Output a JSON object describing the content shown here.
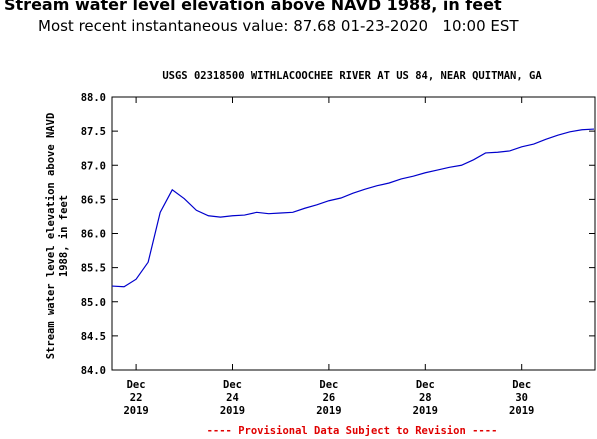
{
  "header": {
    "title": "Stream water level elevation above NAVD 1988, in feet",
    "subtitle": "Most recent instantaneous value: 87.68 01-23-2020   10:00 EST"
  },
  "chart_data": {
    "type": "line",
    "title": "USGS 02318500 WITHLACOOCHEE RIVER AT US 84, NEAR QUITMAN, GA",
    "ylabel": [
      "Stream water level elevation above NAVD",
      "1988, in feet"
    ],
    "footer": "---- Provisional Data Subject to Revision ----",
    "color": "#0000cc",
    "x": [
      "2019-12-21T12:00",
      "2019-12-21T18:00",
      "2019-12-22T00:00",
      "2019-12-22T06:00",
      "2019-12-22T12:00",
      "2019-12-22T18:00",
      "2019-12-23T00:00",
      "2019-12-23T06:00",
      "2019-12-23T12:00",
      "2019-12-23T18:00",
      "2019-12-24T00:00",
      "2019-12-24T06:00",
      "2019-12-24T12:00",
      "2019-12-24T18:00",
      "2019-12-25T00:00",
      "2019-12-25T06:00",
      "2019-12-25T12:00",
      "2019-12-25T18:00",
      "2019-12-26T00:00",
      "2019-12-26T06:00",
      "2019-12-26T12:00",
      "2019-12-26T18:00",
      "2019-12-27T00:00",
      "2019-12-27T06:00",
      "2019-12-27T12:00",
      "2019-12-27T18:00",
      "2019-12-28T00:00",
      "2019-12-28T06:00",
      "2019-12-28T12:00",
      "2019-12-28T18:00",
      "2019-12-29T00:00",
      "2019-12-29T06:00",
      "2019-12-29T12:00",
      "2019-12-29T18:00",
      "2019-12-30T00:00",
      "2019-12-30T06:00",
      "2019-12-30T12:00",
      "2019-12-30T18:00",
      "2019-12-31T00:00",
      "2019-12-31T06:00",
      "2019-12-31T12:00"
    ],
    "values": [
      85.23,
      85.22,
      85.33,
      85.58,
      86.31,
      86.64,
      86.51,
      86.34,
      86.26,
      86.24,
      86.26,
      86.27,
      86.31,
      86.29,
      86.3,
      86.31,
      86.37,
      86.42,
      86.48,
      86.52,
      86.59,
      86.65,
      86.7,
      86.74,
      86.8,
      86.84,
      86.89,
      86.93,
      86.97,
      87.0,
      87.08,
      87.18,
      87.19,
      87.21,
      87.27,
      87.31,
      87.38,
      87.44,
      87.49,
      87.52,
      87.53
    ],
    "xlim": [
      "2019-12-21T12:00",
      "2019-12-31T12:30"
    ],
    "xticks": [
      {
        "value": "2019-12-22T00:00",
        "label": [
          "Dec",
          "22",
          "2019"
        ]
      },
      {
        "value": "2019-12-24T00:00",
        "label": [
          "Dec",
          "24",
          "2019"
        ]
      },
      {
        "value": "2019-12-26T00:00",
        "label": [
          "Dec",
          "26",
          "2019"
        ]
      },
      {
        "value": "2019-12-28T00:00",
        "label": [
          "Dec",
          "28",
          "2019"
        ]
      },
      {
        "value": "2019-12-30T00:00",
        "label": [
          "Dec",
          "30",
          "2019"
        ]
      }
    ],
    "ylim": [
      84,
      88
    ],
    "yticks": [
      {
        "value": 84,
        "label": "84.0"
      },
      {
        "value": 84.5,
        "label": "84.5"
      },
      {
        "value": 85,
        "label": "85.0"
      },
      {
        "value": 85.5,
        "label": "85.5"
      },
      {
        "value": 86,
        "label": "86.0"
      },
      {
        "value": 86.5,
        "label": "86.5"
      },
      {
        "value": 87,
        "label": "87.0"
      },
      {
        "value": 87.5,
        "label": "87.5"
      },
      {
        "value": 88,
        "label": "88.0"
      }
    ]
  }
}
